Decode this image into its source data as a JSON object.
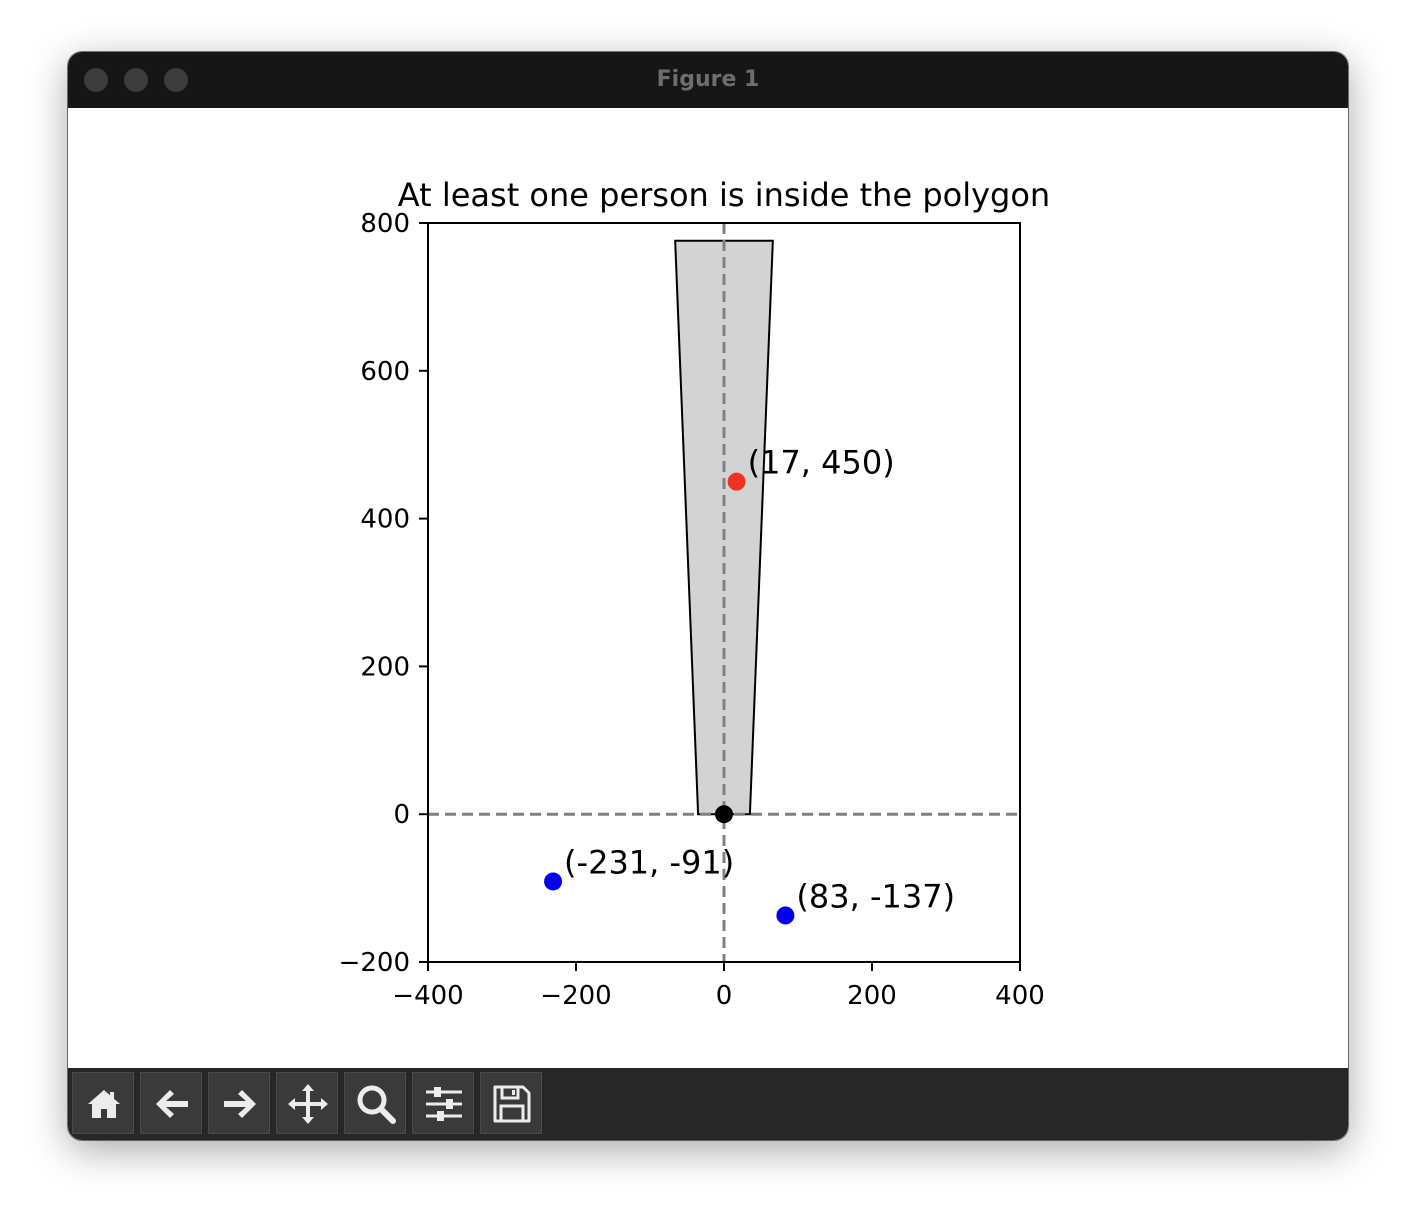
{
  "window": {
    "title": "Figure 1"
  },
  "toolbar": {
    "buttons": [
      {
        "name": "home-button",
        "icon": "home-icon"
      },
      {
        "name": "back-button",
        "icon": "arrow-left-icon"
      },
      {
        "name": "forward-button",
        "icon": "arrow-right-icon"
      },
      {
        "name": "pan-button",
        "icon": "move-icon"
      },
      {
        "name": "zoom-button",
        "icon": "search-icon"
      },
      {
        "name": "configure-subplots-button",
        "icon": "sliders-icon"
      },
      {
        "name": "save-button",
        "icon": "floppy-disk-icon"
      }
    ]
  },
  "chart_data": {
    "type": "scatter",
    "title": "At least one person is inside the polygon",
    "xlabel": "",
    "ylabel": "",
    "xlim": [
      -400,
      400
    ],
    "ylim": [
      -200,
      800
    ],
    "xticks": [
      "−400",
      "−200",
      "0",
      "200",
      "400"
    ],
    "xtick_values": [
      -400,
      -200,
      0,
      200,
      400
    ],
    "yticks": [
      "−200",
      "0",
      "200",
      "400",
      "600",
      "800"
    ],
    "ytick_values": [
      -200,
      0,
      200,
      400,
      600,
      800
    ],
    "grid": false,
    "reference_lines": [
      {
        "orientation": "horizontal",
        "value": 0,
        "style": "dashed",
        "color": "#808080"
      },
      {
        "orientation": "vertical",
        "value": 0,
        "style": "dashed",
        "color": "#808080"
      }
    ],
    "polygon": {
      "vertices": [
        [
          -35,
          0
        ],
        [
          35,
          0
        ],
        [
          66,
          776
        ],
        [
          -66,
          776
        ]
      ],
      "fill": "#d3d3d3",
      "edge": "#000000"
    },
    "origin_point": {
      "x": 0,
      "y": 0,
      "color": "#000000"
    },
    "points": [
      {
        "x": 17,
        "y": 450,
        "label": "(17, 450)",
        "color": "#ee3322",
        "inside": true
      },
      {
        "x": -231,
        "y": -91,
        "label": "(-231, -91)",
        "color": "#0000ee",
        "inside": false
      },
      {
        "x": 83,
        "y": -137,
        "label": "(83, -137)",
        "color": "#0000ee",
        "inside": false
      }
    ]
  }
}
